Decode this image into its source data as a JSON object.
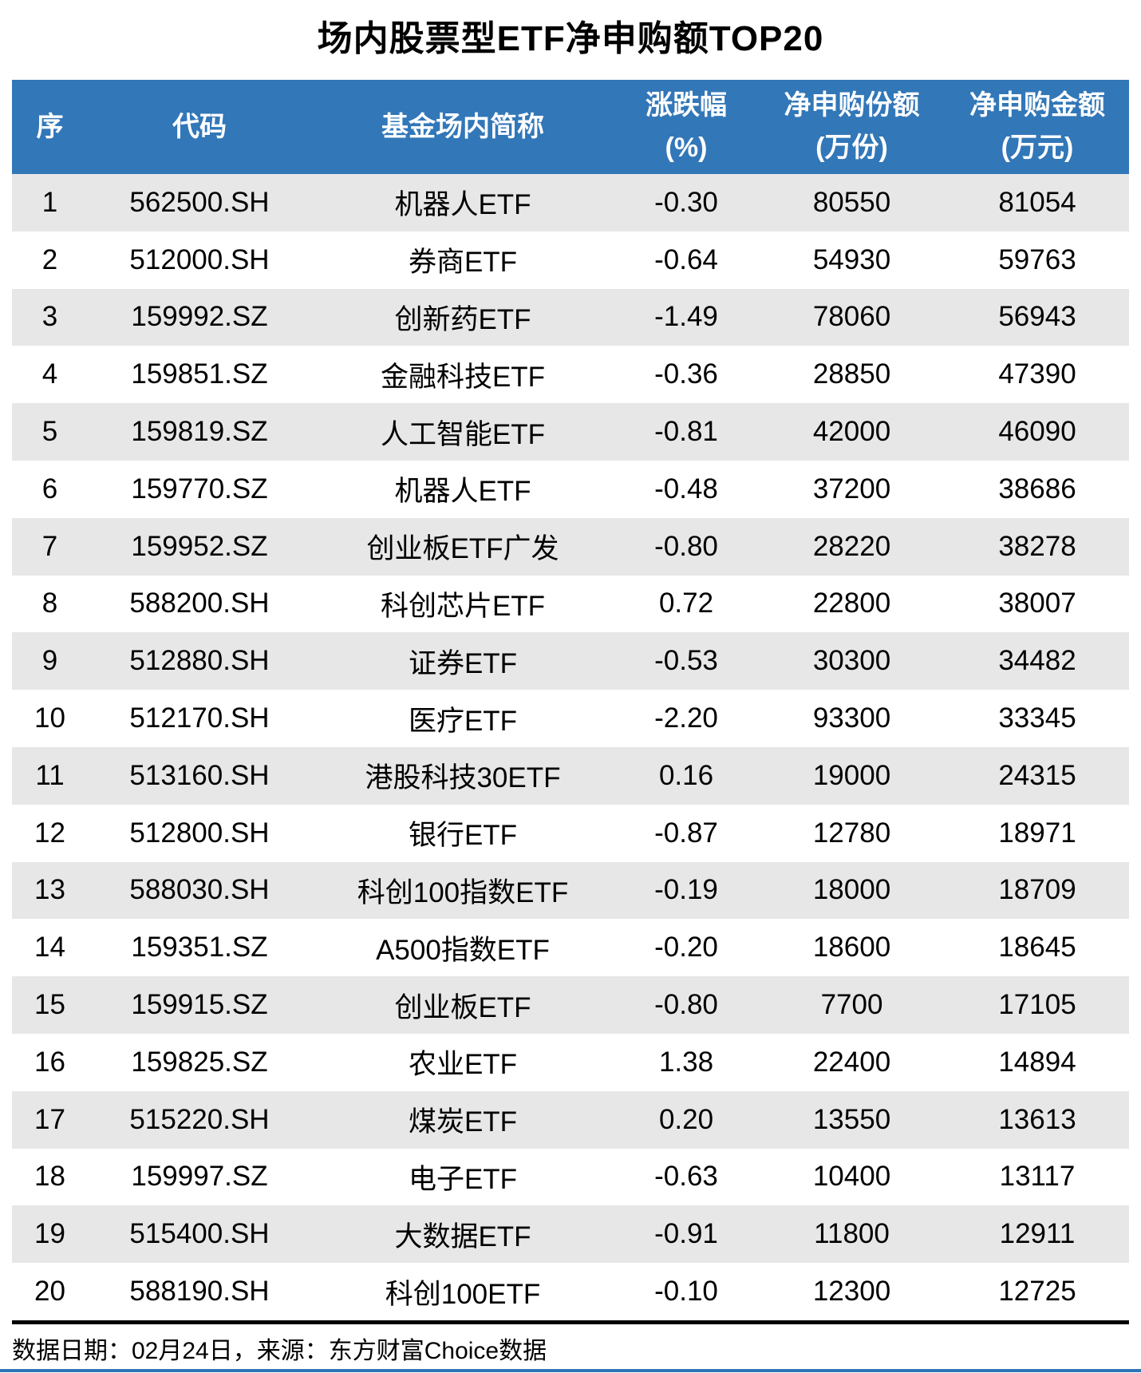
{
  "title": "场内股票型ETF净申购额TOP20",
  "footer": {
    "text": "数据日期：02月24日，来源：东方财富Choice数据"
  },
  "colors": {
    "header_bg": "#3277B8",
    "stripe": "#E7E7E7",
    "accent_line": "#2E74B5",
    "text": "#000000"
  },
  "table": {
    "columns": [
      {
        "label": "序",
        "unit": ""
      },
      {
        "label": "代码",
        "unit": ""
      },
      {
        "label": "基金场内简称",
        "unit": ""
      },
      {
        "label": "涨跌幅",
        "unit": "(%)"
      },
      {
        "label": "净申购份额",
        "unit": "(万份)"
      },
      {
        "label": "净申购金额",
        "unit": "(万元)"
      }
    ],
    "rows": [
      {
        "rank": "1",
        "code": "562500.SH",
        "name": "机器人ETF",
        "change": "-0.30",
        "shares": "80550",
        "amount": "81054"
      },
      {
        "rank": "2",
        "code": "512000.SH",
        "name": "券商ETF",
        "change": "-0.64",
        "shares": "54930",
        "amount": "59763"
      },
      {
        "rank": "3",
        "code": "159992.SZ",
        "name": "创新药ETF",
        "change": "-1.49",
        "shares": "78060",
        "amount": "56943"
      },
      {
        "rank": "4",
        "code": "159851.SZ",
        "name": "金融科技ETF",
        "change": "-0.36",
        "shares": "28850",
        "amount": "47390"
      },
      {
        "rank": "5",
        "code": "159819.SZ",
        "name": "人工智能ETF",
        "change": "-0.81",
        "shares": "42000",
        "amount": "46090"
      },
      {
        "rank": "6",
        "code": "159770.SZ",
        "name": "机器人ETF",
        "change": "-0.48",
        "shares": "37200",
        "amount": "38686"
      },
      {
        "rank": "7",
        "code": "159952.SZ",
        "name": "创业板ETF广发",
        "change": "-0.80",
        "shares": "28220",
        "amount": "38278"
      },
      {
        "rank": "8",
        "code": "588200.SH",
        "name": "科创芯片ETF",
        "change": "0.72",
        "shares": "22800",
        "amount": "38007"
      },
      {
        "rank": "9",
        "code": "512880.SH",
        "name": "证券ETF",
        "change": "-0.53",
        "shares": "30300",
        "amount": "34482"
      },
      {
        "rank": "10",
        "code": "512170.SH",
        "name": "医疗ETF",
        "change": "-2.20",
        "shares": "93300",
        "amount": "33345"
      },
      {
        "rank": "11",
        "code": "513160.SH",
        "name": "港股科技30ETF",
        "change": "0.16",
        "shares": "19000",
        "amount": "24315"
      },
      {
        "rank": "12",
        "code": "512800.SH",
        "name": "银行ETF",
        "change": "-0.87",
        "shares": "12780",
        "amount": "18971"
      },
      {
        "rank": "13",
        "code": "588030.SH",
        "name": "科创100指数ETF",
        "change": "-0.19",
        "shares": "18000",
        "amount": "18709"
      },
      {
        "rank": "14",
        "code": "159351.SZ",
        "name": "A500指数ETF",
        "change": "-0.20",
        "shares": "18600",
        "amount": "18645"
      },
      {
        "rank": "15",
        "code": "159915.SZ",
        "name": "创业板ETF",
        "change": "-0.80",
        "shares": "7700",
        "amount": "17105"
      },
      {
        "rank": "16",
        "code": "159825.SZ",
        "name": "农业ETF",
        "change": "1.38",
        "shares": "22400",
        "amount": "14894"
      },
      {
        "rank": "17",
        "code": "515220.SH",
        "name": "煤炭ETF",
        "change": "0.20",
        "shares": "13550",
        "amount": "13613"
      },
      {
        "rank": "18",
        "code": "159997.SZ",
        "name": "电子ETF",
        "change": "-0.63",
        "shares": "10400",
        "amount": "13117"
      },
      {
        "rank": "19",
        "code": "515400.SH",
        "name": "大数据ETF",
        "change": "-0.91",
        "shares": "11800",
        "amount": "12911"
      },
      {
        "rank": "20",
        "code": "588190.SH",
        "name": "科创100ETF",
        "change": "-0.10",
        "shares": "12300",
        "amount": "12725"
      }
    ]
  },
  "chart_data": {
    "type": "table",
    "title": "场内股票型ETF净申购额TOP20",
    "columns": [
      "序",
      "代码",
      "基金场内简称",
      "涨跌幅(%)",
      "净申购份额(万份)",
      "净申购金额(万元)"
    ],
    "rows": [
      [
        1,
        "562500.SH",
        "机器人ETF",
        -0.3,
        80550,
        81054
      ],
      [
        2,
        "512000.SH",
        "券商ETF",
        -0.64,
        54930,
        59763
      ],
      [
        3,
        "159992.SZ",
        "创新药ETF",
        -1.49,
        78060,
        56943
      ],
      [
        4,
        "159851.SZ",
        "金融科技ETF",
        -0.36,
        28850,
        47390
      ],
      [
        5,
        "159819.SZ",
        "人工智能ETF",
        -0.81,
        42000,
        46090
      ],
      [
        6,
        "159770.SZ",
        "机器人ETF",
        -0.48,
        37200,
        38686
      ],
      [
        7,
        "159952.SZ",
        "创业板ETF广发",
        -0.8,
        28220,
        38278
      ],
      [
        8,
        "588200.SH",
        "科创芯片ETF",
        0.72,
        22800,
        38007
      ],
      [
        9,
        "512880.SH",
        "证券ETF",
        -0.53,
        30300,
        34482
      ],
      [
        10,
        "512170.SH",
        "医疗ETF",
        -2.2,
        93300,
        33345
      ],
      [
        11,
        "513160.SH",
        "港股科技30ETF",
        0.16,
        19000,
        24315
      ],
      [
        12,
        "512800.SH",
        "银行ETF",
        -0.87,
        12780,
        18971
      ],
      [
        13,
        "588030.SH",
        "科创100指数ETF",
        -0.19,
        18000,
        18709
      ],
      [
        14,
        "159351.SZ",
        "A500指数ETF",
        -0.2,
        18600,
        18645
      ],
      [
        15,
        "159915.SZ",
        "创业板ETF",
        -0.8,
        7700,
        17105
      ],
      [
        16,
        "159825.SZ",
        "农业ETF",
        1.38,
        22400,
        14894
      ],
      [
        17,
        "515220.SH",
        "煤炭ETF",
        0.2,
        13550,
        13613
      ],
      [
        18,
        "159997.SZ",
        "电子ETF",
        -0.63,
        10400,
        13117
      ],
      [
        19,
        "515400.SH",
        "大数据ETF",
        -0.91,
        11800,
        12911
      ],
      [
        20,
        "588190.SH",
        "科创100ETF",
        -0.1,
        12300,
        12725
      ]
    ],
    "source_note": "数据日期：02月24日，来源：东方财富Choice数据"
  }
}
